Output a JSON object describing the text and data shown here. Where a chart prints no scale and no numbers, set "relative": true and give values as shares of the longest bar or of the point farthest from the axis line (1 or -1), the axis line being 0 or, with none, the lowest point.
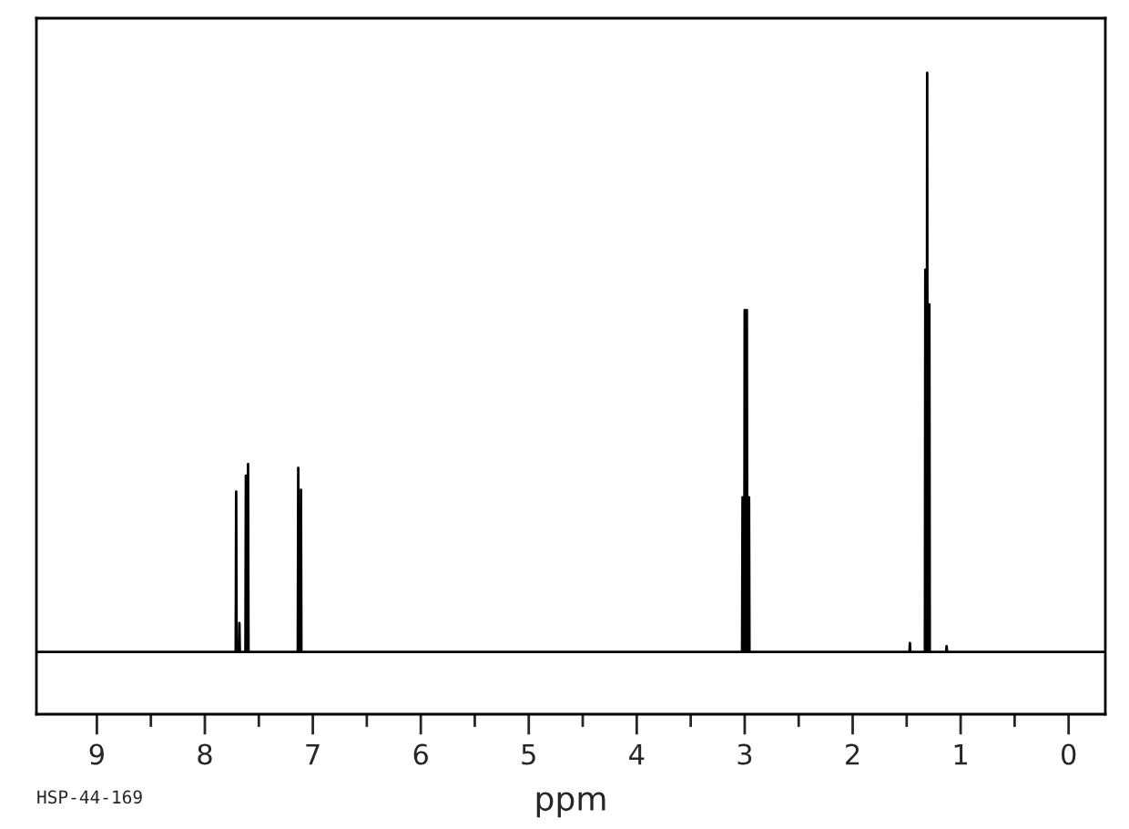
{
  "chart_data": {
    "type": "line",
    "relative": true,
    "xlabel": "ppm",
    "annotations": [
      "HSP-44-169"
    ],
    "xlim": [
      9.56,
      -0.34
    ],
    "xticks": [
      9,
      {
        "value": 8.5,
        "label": null
      },
      8,
      {
        "value": 7.5,
        "label": null
      },
      7,
      {
        "value": 6.5,
        "label": null
      },
      6,
      {
        "value": 5.5,
        "label": null
      },
      5,
      {
        "value": 4.5,
        "label": null
      },
      4,
      {
        "value": 3.5,
        "label": null
      },
      3,
      {
        "value": 2.5,
        "label": null
      },
      2,
      {
        "value": 1.5,
        "label": null
      },
      1,
      {
        "value": 0.5,
        "label": null
      },
      0
    ],
    "tick_labels": "x",
    "grid": false,
    "legend": false,
    "marker": "none",
    "line_style": "solid",
    "series": [
      {
        "color": "#000000",
        "x": [
          9.56,
          7.714,
          7.71,
          7.706,
          7.684,
          7.68,
          7.676,
          7.624,
          7.62,
          7.616,
          7.604,
          7.6,
          7.596,
          7.139,
          7.135,
          7.131,
          7.114,
          7.11,
          7.106,
          3.024,
          3.02,
          3.016,
          3.004,
          3.0,
          2.996,
          2.984,
          2.98,
          2.976,
          2.964,
          2.96,
          2.956,
          1.474,
          1.47,
          1.466,
          1.331,
          1.327,
          1.323,
          1.314,
          1.31,
          1.306,
          1.294,
          1.29,
          1.286,
          1.134,
          1.13,
          1.126,
          -0.34
        ],
        "values": [
          0.097,
          0.097,
          0.347,
          0.097,
          0.097,
          0.142,
          0.097,
          0.097,
          0.372,
          0.097,
          0.097,
          0.39,
          0.097,
          0.097,
          0.384,
          0.097,
          0.097,
          0.35,
          0.097,
          0.097,
          0.338,
          0.097,
          0.097,
          0.63,
          0.097,
          0.097,
          0.63,
          0.097,
          0.097,
          0.338,
          0.097,
          0.097,
          0.111,
          0.097,
          0.097,
          0.693,
          0.097,
          0.097,
          1.0,
          0.097,
          0.097,
          0.639,
          0.097,
          0.097,
          0.106,
          0.097,
          0.097
        ]
      }
    ]
  }
}
